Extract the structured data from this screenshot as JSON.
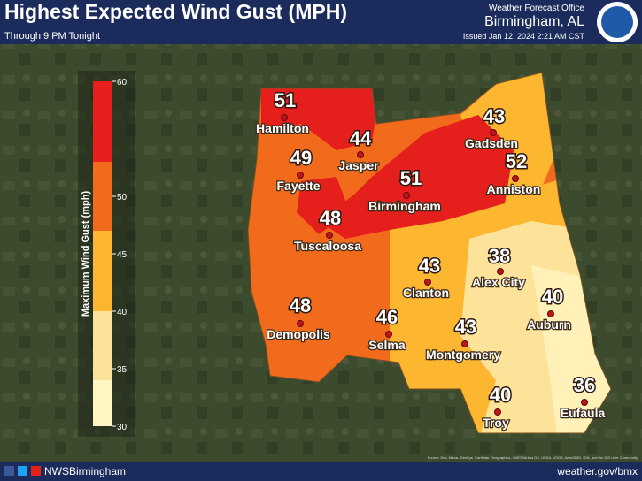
{
  "header": {
    "title": "Highest Expected Wind Gust (MPH)",
    "subtitle": "Through 9 PM Tonight",
    "office": "Weather Forecast Office",
    "location": "Birmingham, AL",
    "issued": "Issued Jan 12, 2024 2:21 AM CST"
  },
  "legend": {
    "label": "Maximum Wind Gust (mph)",
    "ticks": [
      60,
      50,
      45,
      40,
      35,
      30
    ],
    "range": [
      30,
      60
    ],
    "bands": [
      {
        "from": 30,
        "to": 34,
        "color": "#fff6c4"
      },
      {
        "from": 34,
        "to": 40,
        "color": "#fde39a"
      },
      {
        "from": 40,
        "to": 47,
        "color": "#fdb630"
      },
      {
        "from": 47,
        "to": 53,
        "color": "#f26b1d"
      },
      {
        "from": 53,
        "to": 60,
        "color": "#e5201c"
      }
    ]
  },
  "cities": [
    {
      "name": "Hamilton",
      "value": 51
    },
    {
      "name": "Jasper",
      "value": 44
    },
    {
      "name": "Fayette",
      "value": 49
    },
    {
      "name": "Birmingham",
      "value": 51
    },
    {
      "name": "Gadsden",
      "value": 43
    },
    {
      "name": "Anniston",
      "value": 52
    },
    {
      "name": "Tuscaloosa",
      "value": 48
    },
    {
      "name": "Clanton",
      "value": 43
    },
    {
      "name": "Alex City",
      "value": 38
    },
    {
      "name": "Auburn",
      "value": 40
    },
    {
      "name": "Demopolis",
      "value": 48
    },
    {
      "name": "Selma",
      "value": 46
    },
    {
      "name": "Montgomery",
      "value": 43
    },
    {
      "name": "Troy",
      "value": 40
    },
    {
      "name": "Eufaula",
      "value": 36
    }
  ],
  "footer": {
    "handle": "NWSBirmingham",
    "url": "weather.gov/bmx",
    "attribution": "Source: Esri, Maxar, GeoEye, Earthstar Geographics, CNES/Airbus DS, USDA, USGS, AeroGRID, IGN, and the GIS User Community"
  }
}
